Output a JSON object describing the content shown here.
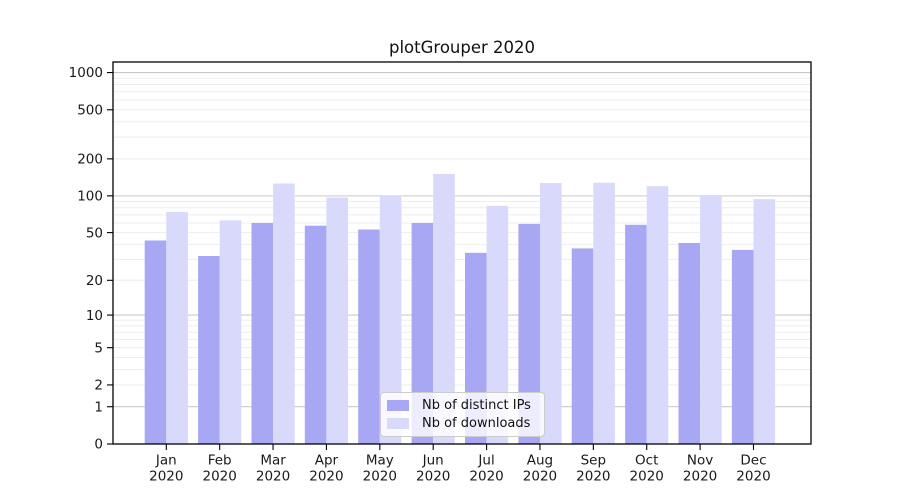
{
  "chart_data": {
    "type": "bar",
    "title": "plotGrouper 2020",
    "categories": [
      "Jan",
      "Feb",
      "Mar",
      "Apr",
      "May",
      "Jun",
      "Jul",
      "Aug",
      "Sep",
      "Oct",
      "Nov",
      "Dec"
    ],
    "year_label": "2020",
    "series": [
      {
        "name": "Nb of distinct IPs",
        "color": "#a7a7f4",
        "values": [
          43,
          32,
          60,
          57,
          53,
          60,
          34,
          59,
          37,
          58,
          41,
          36
        ]
      },
      {
        "name": "Nb of downloads",
        "color": "#d9d9fb",
        "values": [
          74,
          63,
          126,
          97,
          101,
          151,
          83,
          127,
          128,
          120,
          100,
          94
        ]
      }
    ],
    "yticks": [
      0,
      1,
      2,
      5,
      10,
      20,
      50,
      100,
      200,
      500,
      1000
    ],
    "scale": "symlog-log10(1+v)",
    "ylim": [
      0,
      1200
    ],
    "xlabel": "",
    "ylabel": "",
    "grid": "both",
    "legend_position": "lower-center"
  },
  "colors": {
    "bar_distinct_ips": "#a7a7f4",
    "bar_downloads": "#d9d9fb",
    "major_grid": "#c9c9c9",
    "minor_grid": "#ededed",
    "spine": "#000000",
    "tick_text": "#1a1a1a",
    "legend_border": "#cccccc"
  }
}
